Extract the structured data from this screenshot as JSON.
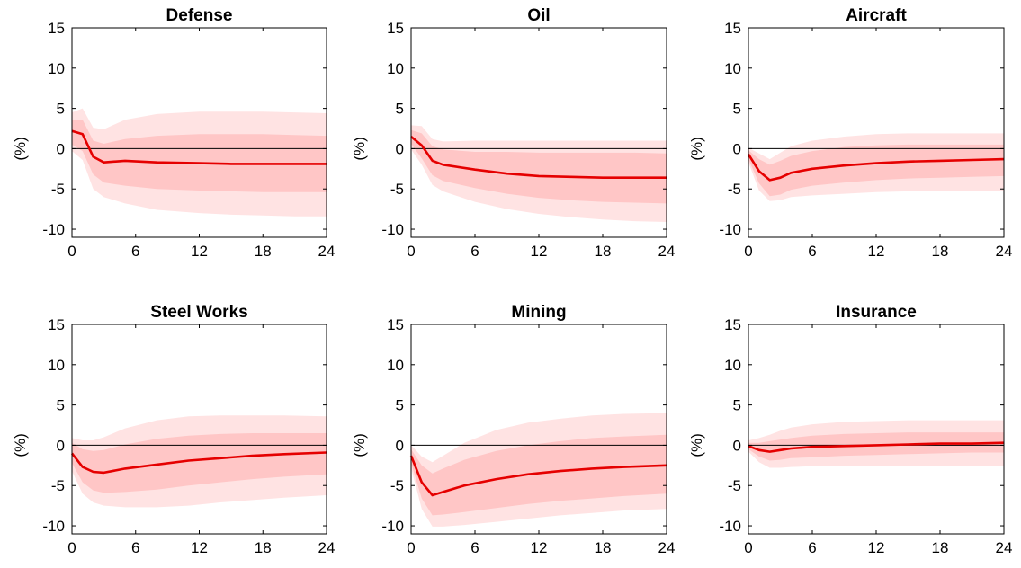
{
  "colors": {
    "median_line": "#e50000",
    "inner_band": "#ffc6c6",
    "outer_band": "#ffe3e3",
    "zero_line": "#000000",
    "axes": "#000000"
  },
  "chart_data": [
    {
      "type": "line",
      "title": "Defense",
      "ylabel": "(%)",
      "xlim": [
        0,
        24
      ],
      "ylim": [
        -11,
        15
      ],
      "x_ticks": [
        0,
        6,
        12,
        18,
        24
      ],
      "y_ticks": [
        -10,
        -5,
        0,
        5,
        10,
        15
      ],
      "x_tick_labels": [
        "0",
        "6",
        "12",
        "18",
        "24"
      ],
      "y_tick_labels": [
        "-10",
        "-5",
        "0",
        "5",
        "10",
        "15"
      ],
      "x": [
        0,
        1,
        2,
        3,
        5,
        8,
        12,
        15,
        18,
        21,
        24
      ],
      "median": [
        2.2,
        1.8,
        -1.0,
        -1.7,
        -1.5,
        -1.7,
        -1.8,
        -1.9,
        -1.9,
        -1.9,
        -1.9
      ],
      "inner_upper": [
        3.6,
        3.6,
        1.0,
        0.6,
        1.2,
        1.6,
        1.8,
        1.8,
        1.8,
        1.7,
        1.6
      ],
      "inner_lower": [
        0.5,
        -0.3,
        -3.2,
        -4.2,
        -4.6,
        -5.0,
        -5.2,
        -5.3,
        -5.4,
        -5.4,
        -5.4
      ],
      "outer_upper": [
        4.5,
        5.0,
        2.6,
        2.4,
        3.6,
        4.3,
        4.6,
        4.6,
        4.6,
        4.5,
        4.4
      ],
      "outer_lower": [
        -0.3,
        -1.4,
        -5.0,
        -6.0,
        -6.8,
        -7.6,
        -8.0,
        -8.2,
        -8.3,
        -8.4,
        -8.4
      ]
    },
    {
      "type": "line",
      "title": "Oil",
      "ylabel": "(%)",
      "xlim": [
        0,
        24
      ],
      "ylim": [
        -11,
        15
      ],
      "x_ticks": [
        0,
        6,
        12,
        18,
        24
      ],
      "y_ticks": [
        -10,
        -5,
        0,
        5,
        10,
        15
      ],
      "x_tick_labels": [
        "0",
        "6",
        "12",
        "18",
        "24"
      ],
      "y_tick_labels": [
        "-10",
        "-5",
        "0",
        "5",
        "10",
        "15"
      ],
      "x": [
        0,
        1,
        2,
        3,
        6,
        9,
        12,
        15,
        18,
        21,
        24
      ],
      "median": [
        1.5,
        0.4,
        -1.5,
        -2.0,
        -2.6,
        -3.1,
        -3.4,
        -3.5,
        -3.6,
        -3.6,
        -3.6
      ],
      "inner_upper": [
        2.3,
        1.9,
        0.3,
        -0.1,
        -0.4,
        -0.4,
        -0.5,
        -0.5,
        -0.5,
        -0.5,
        -0.6
      ],
      "inner_lower": [
        0.6,
        -1.2,
        -3.3,
        -4.0,
        -4.9,
        -5.6,
        -6.1,
        -6.4,
        -6.6,
        -6.7,
        -6.8
      ],
      "outer_upper": [
        2.9,
        2.8,
        1.2,
        0.9,
        1.0,
        1.0,
        1.0,
        1.0,
        1.0,
        1.0,
        1.0
      ],
      "outer_lower": [
        -0.1,
        -2.0,
        -4.5,
        -5.3,
        -6.6,
        -7.5,
        -8.1,
        -8.5,
        -8.8,
        -9.0,
        -9.1
      ]
    },
    {
      "type": "line",
      "title": "Aircraft",
      "ylabel": "(%)",
      "xlim": [
        0,
        24
      ],
      "ylim": [
        -11,
        15
      ],
      "x_ticks": [
        0,
        6,
        12,
        18,
        24
      ],
      "y_ticks": [
        -10,
        -5,
        0,
        5,
        10,
        15
      ],
      "x_tick_labels": [
        "0",
        "6",
        "12",
        "18",
        "24"
      ],
      "y_tick_labels": [
        "-10",
        "-5",
        "0",
        "5",
        "10",
        "15"
      ],
      "x": [
        0,
        1,
        2,
        3,
        4,
        6,
        9,
        12,
        15,
        18,
        21,
        24
      ],
      "median": [
        -0.7,
        -2.8,
        -3.9,
        -3.6,
        -3.0,
        -2.5,
        -2.1,
        -1.8,
        -1.6,
        -1.5,
        -1.4,
        -1.3
      ],
      "inner_upper": [
        -0.2,
        -1.3,
        -2.0,
        -1.5,
        -0.9,
        -0.3,
        0.2,
        0.4,
        0.5,
        0.5,
        0.5,
        0.5
      ],
      "inner_lower": [
        -1.3,
        -4.3,
        -5.9,
        -5.7,
        -5.1,
        -4.6,
        -4.2,
        -3.9,
        -3.7,
        -3.6,
        -3.5,
        -3.4
      ],
      "outer_upper": [
        0.1,
        -0.6,
        -1.3,
        -0.5,
        0.3,
        1.0,
        1.5,
        1.8,
        1.9,
        1.9,
        1.9,
        1.9
      ],
      "outer_lower": [
        -1.7,
        -5.2,
        -6.5,
        -6.4,
        -6.0,
        -5.8,
        -5.6,
        -5.4,
        -5.3,
        -5.2,
        -5.2,
        -5.2
      ]
    },
    {
      "type": "line",
      "title": "Steel Works",
      "ylabel": "(%)",
      "xlim": [
        0,
        24
      ],
      "ylim": [
        -11,
        15
      ],
      "x_ticks": [
        0,
        6,
        12,
        18,
        24
      ],
      "y_ticks": [
        -10,
        -5,
        0,
        5,
        10,
        15
      ],
      "x_tick_labels": [
        "0",
        "6",
        "12",
        "18",
        "24"
      ],
      "y_tick_labels": [
        "-10",
        "-5",
        "0",
        "5",
        "10",
        "15"
      ],
      "x": [
        0,
        1,
        2,
        3,
        5,
        8,
        11,
        14,
        17,
        20,
        24
      ],
      "median": [
        -1.0,
        -2.7,
        -3.3,
        -3.4,
        -2.9,
        -2.4,
        -1.9,
        -1.6,
        -1.3,
        -1.1,
        -0.9
      ],
      "inner_upper": [
        0.3,
        -0.5,
        -0.7,
        -0.6,
        0.1,
        0.8,
        1.2,
        1.4,
        1.5,
        1.5,
        1.5
      ],
      "inner_lower": [
        -2.2,
        -4.6,
        -5.6,
        -5.9,
        -5.8,
        -5.5,
        -5.0,
        -4.6,
        -4.2,
        -3.9,
        -3.6
      ],
      "outer_upper": [
        0.9,
        0.6,
        0.6,
        1.0,
        2.1,
        3.1,
        3.6,
        3.7,
        3.7,
        3.7,
        3.6
      ],
      "outer_lower": [
        -3.2,
        -6.0,
        -7.1,
        -7.5,
        -7.7,
        -7.7,
        -7.5,
        -7.1,
        -6.8,
        -6.5,
        -6.2
      ]
    },
    {
      "type": "line",
      "title": "Mining",
      "ylabel": "(%)",
      "xlim": [
        0,
        24
      ],
      "ylim": [
        -11,
        15
      ],
      "x_ticks": [
        0,
        6,
        12,
        18,
        24
      ],
      "y_ticks": [
        -10,
        -5,
        0,
        5,
        10,
        15
      ],
      "x_tick_labels": [
        "0",
        "6",
        "12",
        "18",
        "24"
      ],
      "y_tick_labels": [
        "-10",
        "-5",
        "0",
        "5",
        "10",
        "15"
      ],
      "x": [
        0,
        1,
        2,
        3,
        5,
        8,
        11,
        14,
        17,
        20,
        24
      ],
      "median": [
        -1.3,
        -4.6,
        -6.2,
        -5.8,
        -5.0,
        -4.2,
        -3.6,
        -3.2,
        -2.9,
        -2.7,
        -2.5
      ],
      "inner_upper": [
        -0.5,
        -2.5,
        -3.5,
        -2.9,
        -1.8,
        -0.7,
        0.0,
        0.5,
        0.9,
        1.1,
        1.3
      ],
      "inner_lower": [
        -2.2,
        -6.6,
        -8.7,
        -8.6,
        -8.3,
        -7.8,
        -7.3,
        -6.9,
        -6.6,
        -6.3,
        -6.0
      ],
      "outer_upper": [
        0.0,
        -1.4,
        -2.1,
        -1.3,
        0.3,
        1.9,
        2.8,
        3.3,
        3.7,
        3.9,
        4.0
      ],
      "outer_lower": [
        -2.8,
        -7.9,
        -10.1,
        -10.1,
        -9.9,
        -9.5,
        -9.1,
        -8.7,
        -8.4,
        -8.1,
        -7.9
      ]
    },
    {
      "type": "line",
      "title": "Insurance",
      "ylabel": "(%)",
      "xlim": [
        0,
        24
      ],
      "ylim": [
        -11,
        15
      ],
      "x_ticks": [
        0,
        6,
        12,
        18,
        24
      ],
      "y_ticks": [
        -10,
        -5,
        0,
        5,
        10,
        15
      ],
      "x_tick_labels": [
        "0",
        "6",
        "12",
        "18",
        "24"
      ],
      "y_tick_labels": [
        "-10",
        "-5",
        "0",
        "5",
        "10",
        "15"
      ],
      "x": [
        0,
        1,
        2,
        3,
        4,
        6,
        9,
        12,
        15,
        18,
        21,
        24
      ],
      "median": [
        -0.1,
        -0.6,
        -0.8,
        -0.6,
        -0.4,
        -0.2,
        -0.1,
        0.0,
        0.1,
        0.2,
        0.2,
        0.3
      ],
      "inner_upper": [
        0.3,
        0.3,
        0.5,
        0.7,
        0.9,
        1.2,
        1.4,
        1.5,
        1.6,
        1.6,
        1.6,
        1.6
      ],
      "inner_lower": [
        -0.5,
        -1.4,
        -1.9,
        -1.8,
        -1.6,
        -1.5,
        -1.3,
        -1.2,
        -1.1,
        -1.0,
        -0.9,
        -0.9
      ],
      "outer_upper": [
        0.6,
        0.9,
        1.3,
        1.8,
        2.2,
        2.6,
        2.9,
        3.0,
        3.1,
        3.1,
        3.1,
        3.1
      ],
      "outer_lower": [
        -0.8,
        -2.1,
        -2.8,
        -2.8,
        -2.7,
        -2.6,
        -2.6,
        -2.6,
        -2.6,
        -2.6,
        -2.6,
        -2.6
      ]
    }
  ]
}
